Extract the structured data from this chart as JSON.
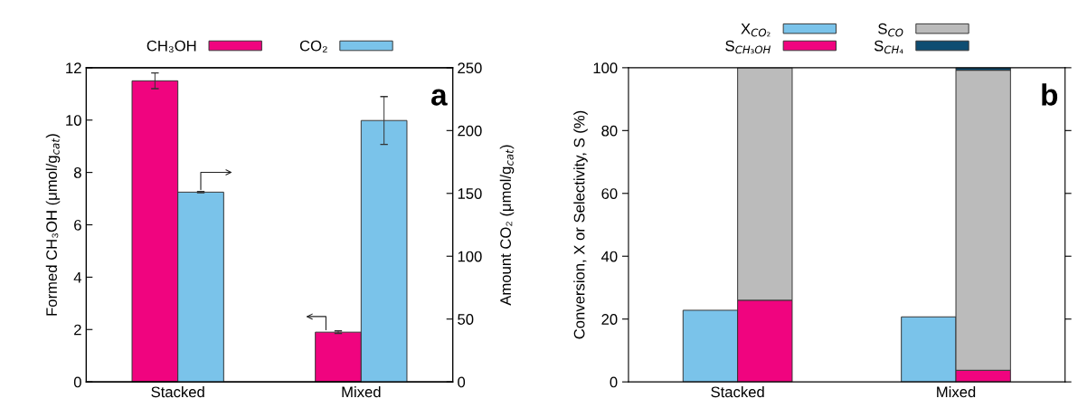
{
  "chart_data": [
    {
      "type": "bar",
      "categories": [
        "Stacked",
        "Mixed"
      ],
      "ylabel": "Formed CH₃OH (μmol/g$_{cat}$)",
      "y2label": "Amount CO₂ (μmol/g$_{cat}$)",
      "ylim": [
        0,
        12
      ],
      "yticks": [
        0,
        2,
        4,
        6,
        8,
        10,
        12
      ],
      "y2lim": [
        0,
        250
      ],
      "y2ticks": [
        0,
        50,
        100,
        150,
        200,
        250
      ],
      "legend": "top",
      "grid": false,
      "annotations": [
        "a"
      ],
      "series": [
        {
          "name": "CH₃OH",
          "color": "#f0047f",
          "values": [
            11.5,
            1.9
          ],
          "errors": [
            0.3,
            0.05
          ]
        },
        {
          "name": "CO₂",
          "color": "#7ac3ea",
          "values": [
            151,
            208
          ],
          "errors": [
            0.5,
            19
          ],
          "axis": "y2"
        }
      ]
    },
    {
      "type": "bar",
      "categories": [
        "Stacked",
        "Mixed"
      ],
      "ylabel": "Conversion, X or Selectivity, S (%)",
      "ylim": [
        0,
        100
      ],
      "yticks": [
        0,
        20,
        40,
        60,
        80,
        100
      ],
      "legend": "top",
      "grid": false,
      "annotations": [
        "b"
      ],
      "series": [
        {
          "name": "X$_{CO₂}$",
          "color": "#7ac3ea",
          "values": [
            22.8,
            20.7
          ]
        },
        {
          "name": "S$_{CH₃OH}$",
          "color": "#f0047f",
          "values": [
            26,
            3.7
          ],
          "base": [
            0,
            0
          ]
        },
        {
          "name": "S$_{CO}$",
          "color": "#bbbbbb",
          "values": [
            74,
            95.5
          ],
          "base": [
            26,
            3.7
          ]
        },
        {
          "name": "S$_{CH₄}$",
          "color": "#0e4d72",
          "values": [
            null,
            0.8
          ],
          "base": [
            null,
            99.2
          ]
        }
      ]
    }
  ]
}
